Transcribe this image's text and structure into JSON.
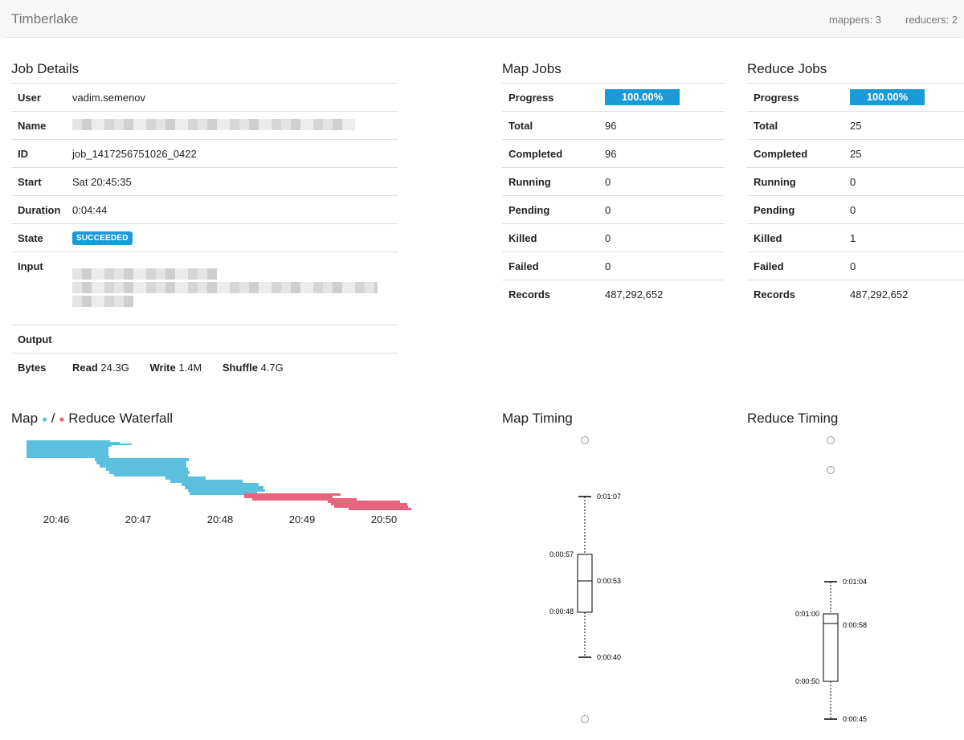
{
  "nav": {
    "brand": "Timberlake",
    "mappers": "mappers: 3",
    "reducers": "reducers: 2"
  },
  "job_details": {
    "title": "Job Details",
    "rows": {
      "user": {
        "label": "User",
        "value": "vadim.semenov"
      },
      "name": {
        "label": "Name"
      },
      "id": {
        "label": "ID",
        "value": "job_1417256751026_0422"
      },
      "start": {
        "label": "Start",
        "value": "Sat 20:45:35"
      },
      "duration": {
        "label": "Duration",
        "value": "0:04:44"
      },
      "state": {
        "label": "State",
        "value": "SUCCEEDED"
      },
      "input": {
        "label": "Input"
      },
      "output": {
        "label": "Output"
      },
      "bytes": {
        "label": "Bytes",
        "read_label": "Read",
        "read": "24.3G",
        "write_label": "Write",
        "write": "1.4M",
        "shuffle_label": "Shuffle",
        "shuffle": "4.7G"
      }
    }
  },
  "map_jobs": {
    "title": "Map Jobs",
    "progress_label": "Progress",
    "progress": "100.00%",
    "total_label": "Total",
    "total": "96",
    "completed_label": "Completed",
    "completed": "96",
    "running_label": "Running",
    "running": "0",
    "pending_label": "Pending",
    "pending": "0",
    "killed_label": "Killed",
    "killed": "0",
    "failed_label": "Failed",
    "failed": "0",
    "records_label": "Records",
    "records": "487,292,652"
  },
  "reduce_jobs": {
    "title": "Reduce Jobs",
    "progress_label": "Progress",
    "progress": "100.00%",
    "total_label": "Total",
    "total": "25",
    "completed_label": "Completed",
    "completed": "25",
    "running_label": "Running",
    "running": "0",
    "pending_label": "Pending",
    "pending": "0",
    "killed_label": "Killed",
    "killed": "1",
    "failed_label": "Failed",
    "failed": "0",
    "records_label": "Records",
    "records": "487,292,652"
  },
  "waterfall": {
    "title_map": "Map",
    "title_sep": "/",
    "title_reduce": "Reduce Waterfall",
    "map_color": "#5bc0de",
    "reduce_color": "#e8637c",
    "ticks": [
      "20:46",
      "20:47",
      "20:48",
      "20:49",
      "20:50"
    ]
  },
  "map_timing": {
    "title": "Map Timing"
  },
  "reduce_timing": {
    "title": "Reduce Timing"
  },
  "chart_data": [
    {
      "type": "box",
      "title": "Map Timing",
      "whisker_high": "0:01:07",
      "q3": "0:00:57",
      "median": "0:00:53",
      "q1": "0:00:48",
      "whisker_low": "0:00:40",
      "outliers": 2
    },
    {
      "type": "box",
      "title": "Reduce Timing",
      "whisker_high": "0:01:04",
      "q3": "0:01:00",
      "median": "0:00:58",
      "q1": "0:00:50",
      "whisker_low": "0:00:45",
      "outliers": 2
    }
  ]
}
